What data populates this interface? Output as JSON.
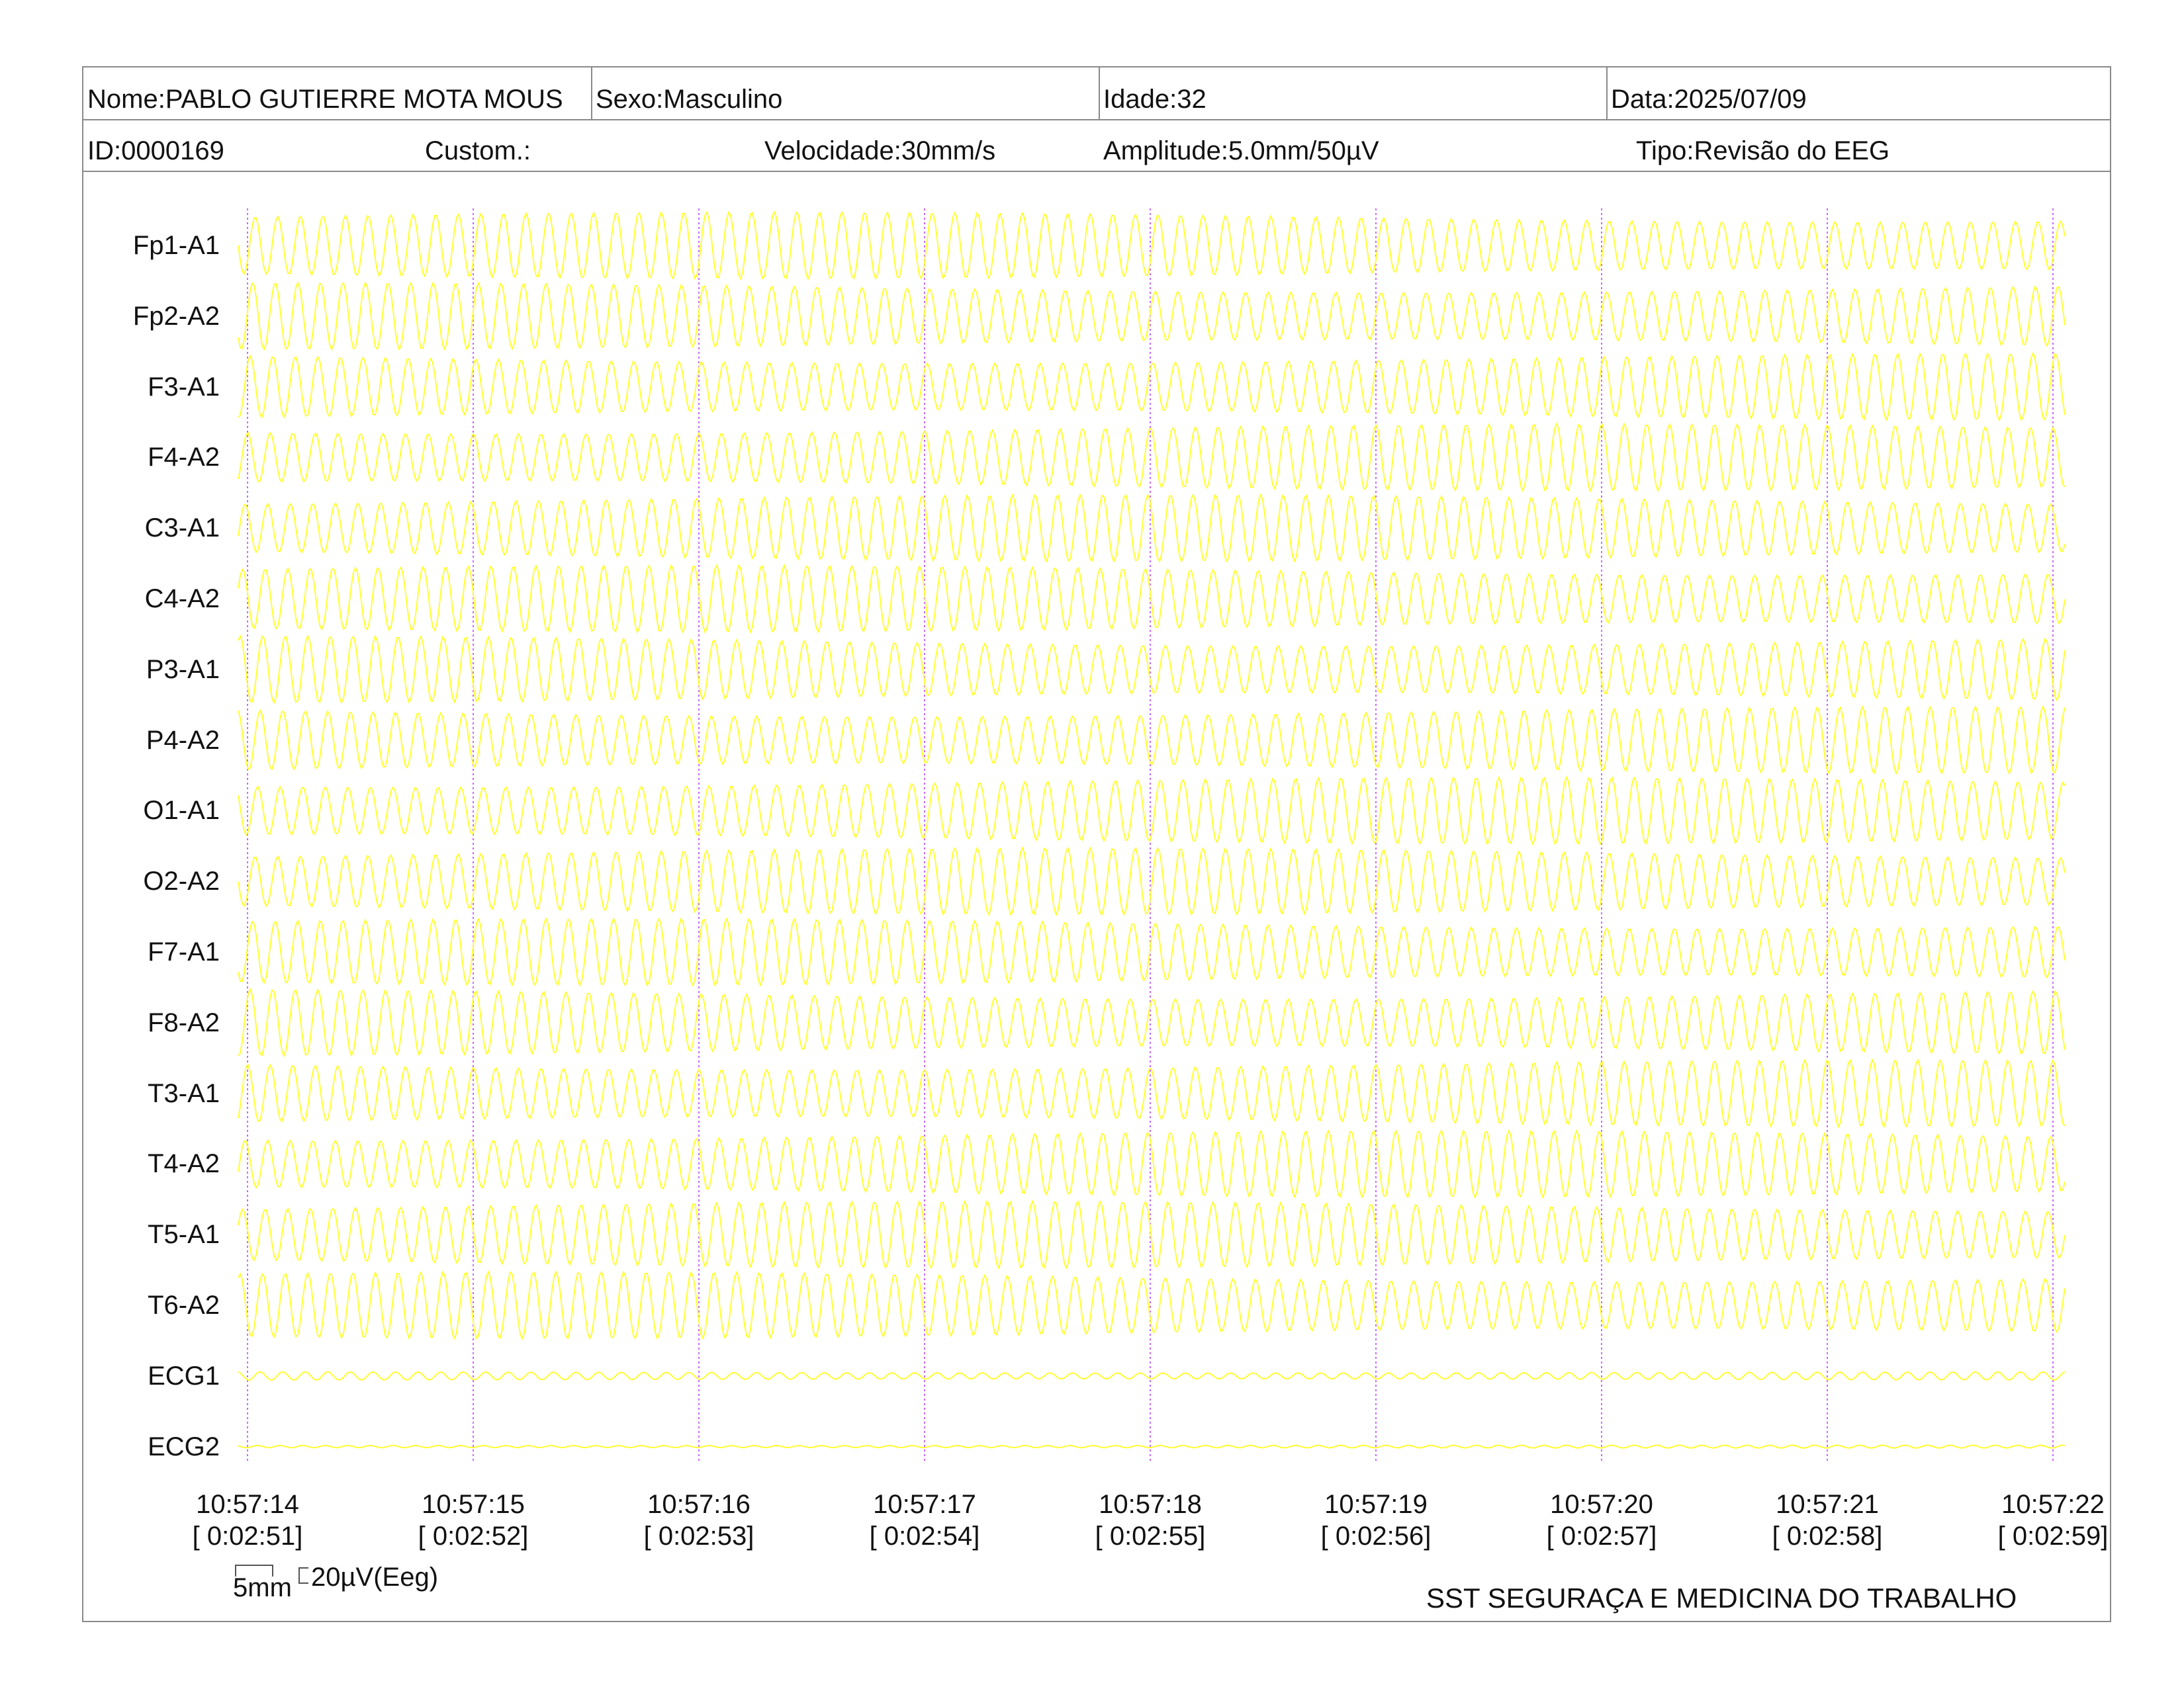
{
  "header": {
    "nome": "Nome:PABLO GUTIERRE MOTA MOUS",
    "sexo": "Sexo:Masculino",
    "idade": "Idade:32",
    "data": "Data:2025/07/09",
    "id": "ID:0000169",
    "custom": "Custom.:",
    "velocidade": "Velocidade:30mm/s",
    "amplitude": "Amplitude:5.0mm/50µV",
    "tipo": "Tipo:Revisão do EEG"
  },
  "chart_data": {
    "type": "line",
    "title": "",
    "xlabel": "",
    "ylabel": "",
    "channels": [
      "Fp1-A1",
      "Fp2-A2",
      "F3-A1",
      "F4-A2",
      "C3-A1",
      "C4-A2",
      "P3-A1",
      "P4-A2",
      "O1-A1",
      "O2-A2",
      "F7-A1",
      "F8-A2",
      "T3-A1",
      "T4-A2",
      "T5-A1",
      "T6-A2",
      "ECG1",
      "ECG2"
    ],
    "time_ticks": [
      "10:57:14",
      "10:57:15",
      "10:57:16",
      "10:57:17",
      "10:57:18",
      "10:57:19",
      "10:57:20",
      "10:57:21",
      "10:57:22"
    ],
    "elapsed_ticks": [
      "[ 0:02:51]",
      "[ 0:02:52]",
      "[ 0:02:53]",
      "[ 0:02:54]",
      "[ 0:02:55]",
      "[ 0:02:56]",
      "[ 0:02:57]",
      "[ 0:02:58]",
      "[ 0:02:59]"
    ],
    "xlim_seconds": [
      0,
      8.08
    ],
    "signal_frequency_hz": 10,
    "eeg_amplitude_uV": 120,
    "ecg1_amplitude_uV": 15,
    "ecg2_amplitude_uV": 5,
    "signal_color": "#ffff33",
    "second_marker_color": "#cc66ff",
    "grid": "vertical dotted lines at each second"
  },
  "scale": {
    "time_bar": "5mm",
    "amp_bar": "20µV(Eeg)"
  },
  "footer": {
    "company": "SST SEGURAÇA E MEDICINA DO TRABALHO"
  }
}
